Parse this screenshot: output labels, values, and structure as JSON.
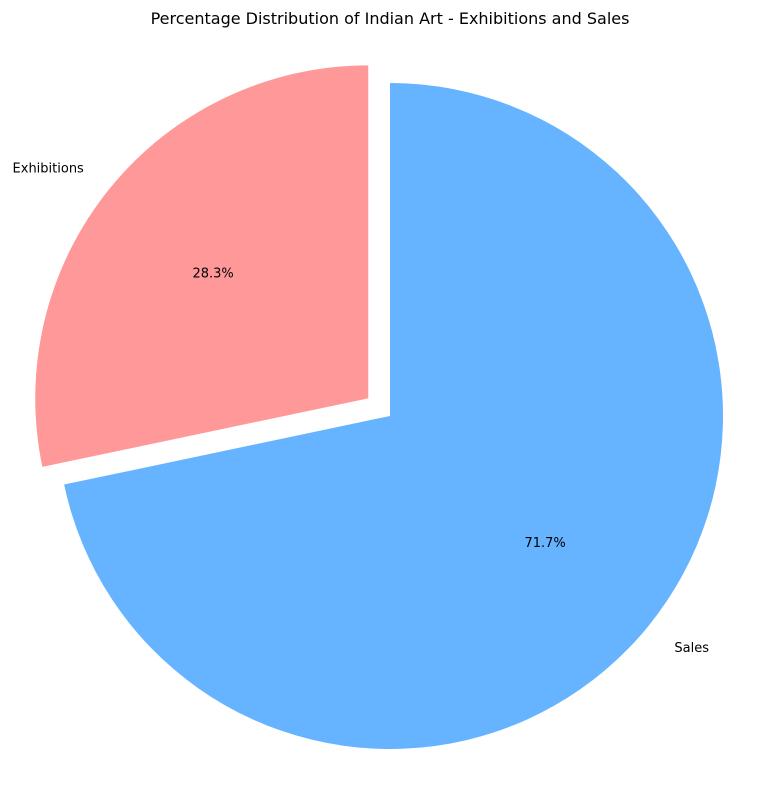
{
  "chart_data": {
    "type": "pie",
    "title": "Percentage Distribution of Indian Art - Exhibitions and Sales",
    "slices": [
      {
        "label": "Exhibitions",
        "value": 28.3,
        "pct_label": "28.3%",
        "color": "#ff9999",
        "exploded": true
      },
      {
        "label": "Sales",
        "value": 71.7,
        "pct_label": "71.7%",
        "color": "#66b3ff",
        "exploded": false
      }
    ],
    "start_angle_deg": 90,
    "direction": "counterclockwise",
    "legend": "none"
  }
}
